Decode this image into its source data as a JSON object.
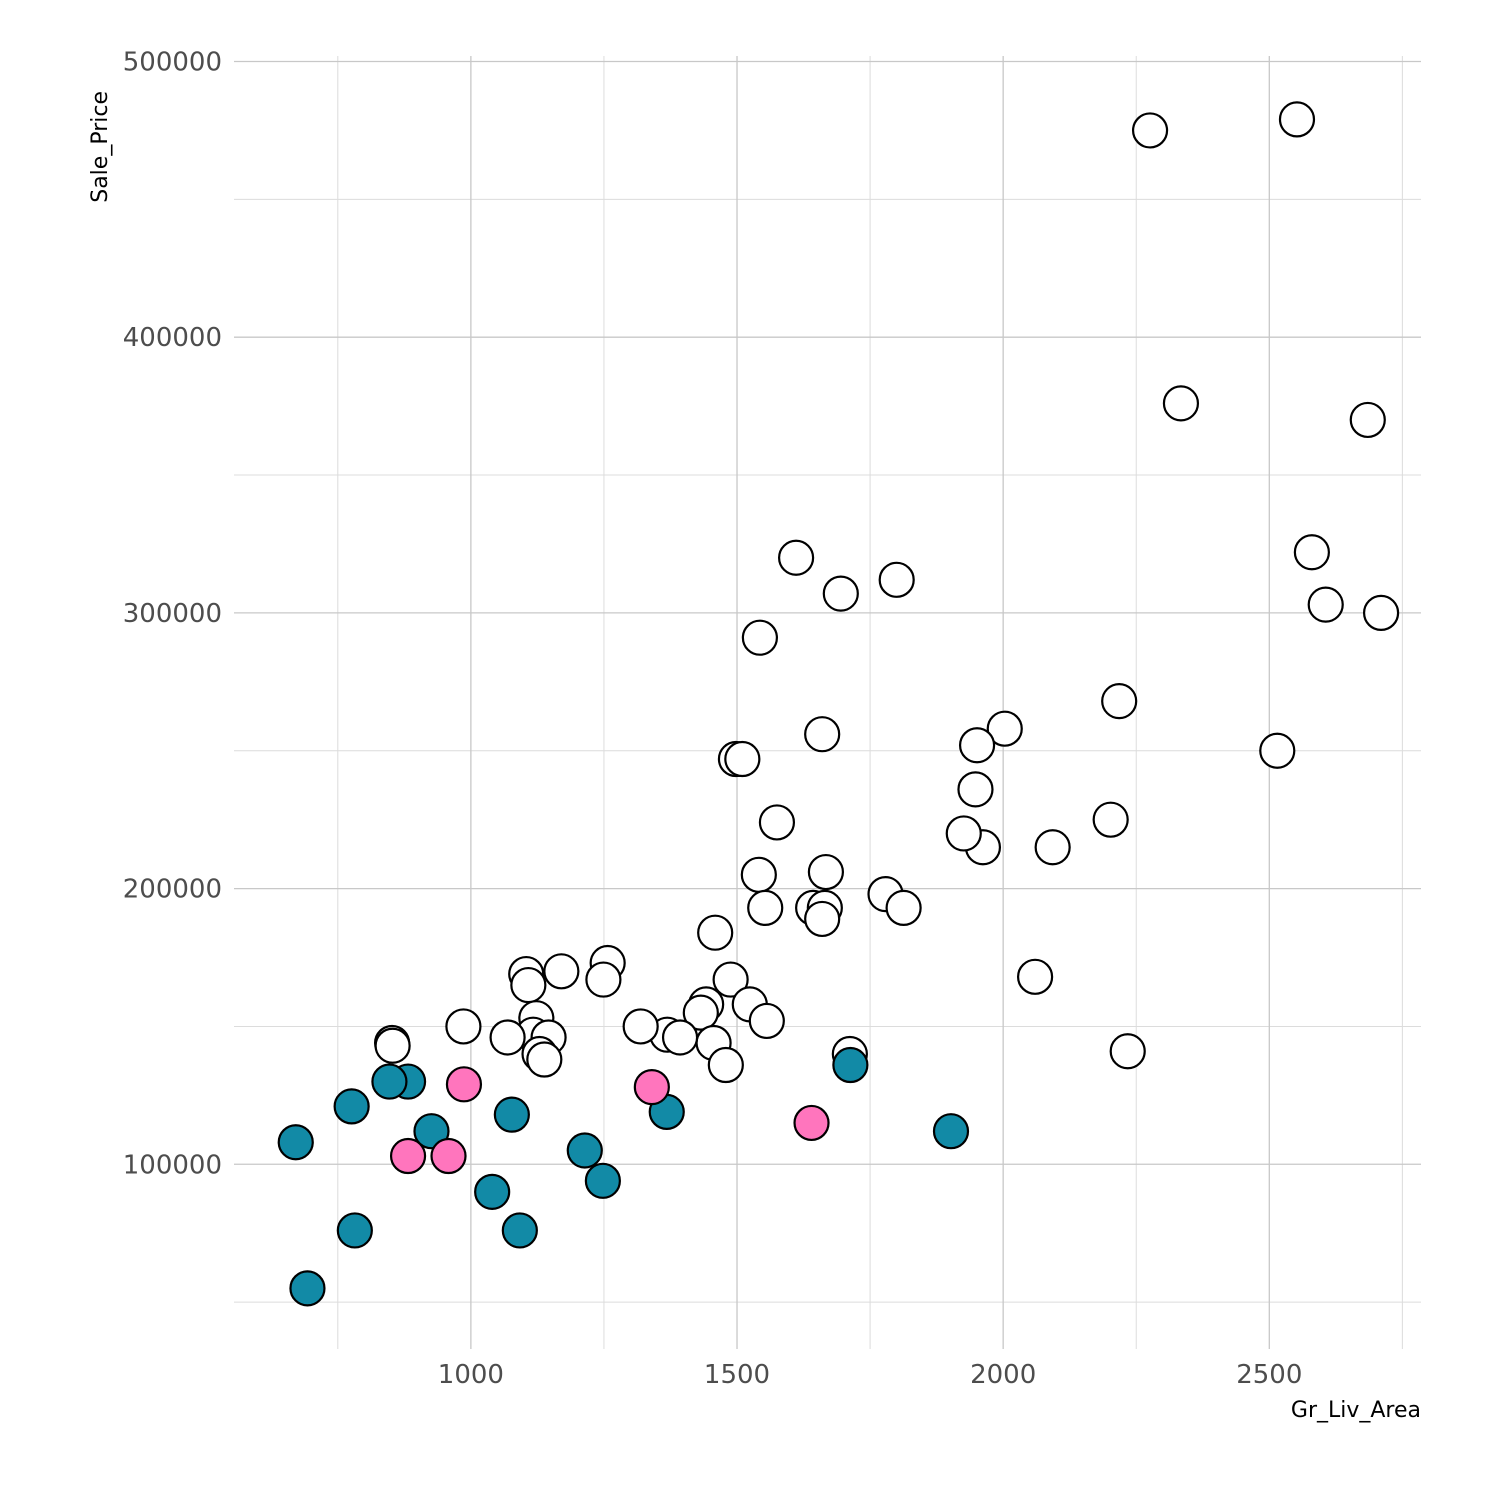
{
  "chart_data": {
    "type": "scatter",
    "xlabel": "Gr_Liv_Area",
    "ylabel": "Sale_Price",
    "xlim": [
      555,
      2785
    ],
    "ylim": [
      33000,
      502000
    ],
    "x_ticks": [
      1000,
      1500,
      2000,
      2500
    ],
    "x_minor": [
      750,
      1250,
      1750,
      2250,
      2750
    ],
    "y_ticks": [
      100000,
      200000,
      300000,
      400000,
      500000
    ],
    "y_minor": [
      50000,
      150000,
      250000,
      350000,
      450000
    ],
    "grid": true,
    "legend": "none",
    "colors": {
      "open": "#ffffff",
      "teal": "#128aa6",
      "pink": "#ff75bd",
      "outline": "#000000"
    },
    "series": [
      {
        "fill": "open",
        "points": [
          [
            2276,
            475000
          ],
          [
            2552,
            479000
          ],
          [
            2334,
            376000
          ],
          [
            2685,
            370000
          ],
          [
            2580,
            322000
          ],
          [
            2606,
            303000
          ],
          [
            2710,
            300000
          ],
          [
            2515,
            250000
          ],
          [
            2218,
            268000
          ],
          [
            2202,
            225000
          ],
          [
            2234,
            141000
          ],
          [
            2003,
            258000
          ],
          [
            1951,
            252000
          ],
          [
            1948,
            236000
          ],
          [
            1962,
            215000
          ],
          [
            1926,
            220000
          ],
          [
            2093,
            215000
          ],
          [
            2060,
            168000
          ],
          [
            1611,
            320000
          ],
          [
            1695,
            307000
          ],
          [
            1800,
            312000
          ],
          [
            1543,
            291000
          ],
          [
            1660,
            256000
          ],
          [
            1498,
            247000
          ],
          [
            1510,
            247000
          ],
          [
            1575,
            224000
          ],
          [
            1541,
            205000
          ],
          [
            1667,
            206000
          ],
          [
            1553,
            193000
          ],
          [
            1643,
            193000
          ],
          [
            1665,
            193000
          ],
          [
            1660,
            189000
          ],
          [
            1779,
            198000
          ],
          [
            1813,
            193000
          ],
          [
            1459,
            184000
          ],
          [
            1488,
            167000
          ],
          [
            1524,
            158000
          ],
          [
            1556,
            152000
          ],
          [
            1442,
            158000
          ],
          [
            1432,
            155000
          ],
          [
            1456,
            144000
          ],
          [
            1479,
            136000
          ],
          [
            1369,
            147000
          ],
          [
            1393,
            146000
          ],
          [
            1319,
            150000
          ],
          [
            1712,
            140000
          ],
          [
            1257,
            173000
          ],
          [
            1249,
            167000
          ],
          [
            1170,
            170000
          ],
          [
            1104,
            169000
          ],
          [
            1108,
            165000
          ],
          [
            1123,
            153000
          ],
          [
            1117,
            147000
          ],
          [
            1146,
            146000
          ],
          [
            1129,
            140000
          ],
          [
            1138,
            138000
          ],
          [
            1069,
            146000
          ],
          [
            986,
            150000
          ],
          [
            852,
            144000
          ],
          [
            853,
            143000
          ]
        ]
      },
      {
        "fill": "teal",
        "points": [
          [
            882,
            130000
          ],
          [
            847,
            130000
          ],
          [
            776,
            121000
          ],
          [
            671,
            108000
          ],
          [
            926,
            112000
          ],
          [
            1077,
            118000
          ],
          [
            1368,
            119000
          ],
          [
            1713,
            136000
          ],
          [
            1902,
            112000
          ],
          [
            1214,
            105000
          ],
          [
            1248,
            94000
          ],
          [
            1040,
            90000
          ],
          [
            782,
            76000
          ],
          [
            1092,
            76000
          ],
          [
            693,
            55000
          ]
        ]
      },
      {
        "fill": "pink",
        "points": [
          [
            987,
            129000
          ],
          [
            1340,
            128000
          ],
          [
            1640,
            115000
          ],
          [
            882,
            103000
          ],
          [
            958,
            103000
          ]
        ]
      }
    ]
  }
}
